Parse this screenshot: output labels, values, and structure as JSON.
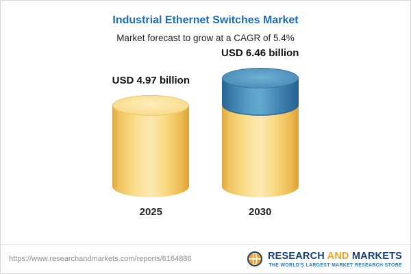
{
  "header": {
    "title": "Industrial Ethernet Switches Market",
    "subtitle": "Market forecast to grow at a CAGR of 5.4%"
  },
  "chart_data": {
    "type": "bar",
    "categories": [
      "2025",
      "2030"
    ],
    "values": [
      4.97,
      6.46
    ],
    "value_labels": [
      "USD 4.97 billion",
      "USD 6.46 billion"
    ],
    "unit": "USD billion",
    "cagr_percent": 5.4,
    "title": "Industrial Ethernet Switches Market",
    "xlabel": "",
    "ylabel": "",
    "ylim": [
      0,
      7
    ],
    "legend": "none",
    "grid": false,
    "notes": "2030 bar shown as yellow cylinder with blue top segment representing growth over 2025"
  },
  "footer": {
    "url": "https://www.researchandmarkets.com/reports/6164886",
    "logo": {
      "research": "RESEARCH",
      "and": "AND",
      "markets": "MARKETS",
      "tagline": "THE WORLD'S LARGEST MARKET RESEARCH STORE"
    }
  },
  "colors": {
    "title_blue": "#1a6cb4",
    "cylinder_yellow": "#f7d67e",
    "cylinder_yellow_cap": "#f9dd8d",
    "segment_blue": "#4689b5",
    "segment_blue_cap": "#4b8eb9",
    "logo_navy": "#173d73",
    "logo_orange": "#f2a124",
    "tagline_blue": "#2e76b8",
    "border_gray": "#d6d6d6"
  }
}
